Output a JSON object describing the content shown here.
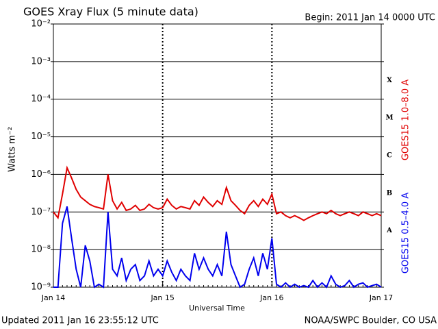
{
  "chart_data": {
    "type": "line",
    "title": "GOES Xray Flux (5 minute data)",
    "subtitle": "Begin:  2011 Jan 14 0000 UTC",
    "xlabel": "Universal Time",
    "ylabel": "Watts m⁻²",
    "footer_left": "Updated 2011 Jan 16 23:55:12 UTC",
    "footer_right": "NOAA/SWPC Boulder, CO USA",
    "log_y": true,
    "grid": true,
    "ylim": [
      1e-09,
      0.01
    ],
    "yticks": [
      {
        "value": 1e-09,
        "label": "10⁻⁹"
      },
      {
        "value": 1e-08,
        "label": "10⁻⁸"
      },
      {
        "value": 1e-07,
        "label": "10⁻⁷"
      },
      {
        "value": 1e-06,
        "label": "10⁻⁶"
      },
      {
        "value": 1e-05,
        "label": "10⁻⁵"
      },
      {
        "value": 0.0001,
        "label": "10⁻⁴"
      },
      {
        "value": 0.001,
        "label": "10⁻³"
      },
      {
        "value": 0.01,
        "label": "10⁻²"
      }
    ],
    "flare_classes": [
      {
        "label": "A",
        "lower": 1e-08
      },
      {
        "label": "B",
        "lower": 1e-07
      },
      {
        "label": "C",
        "lower": 1e-06
      },
      {
        "label": "M",
        "lower": 1e-05
      },
      {
        "label": "X",
        "lower": 0.0001
      }
    ],
    "categories": [
      "Jan 14",
      null,
      null,
      null,
      null,
      null,
      null,
      null,
      null,
      null,
      null,
      null,
      null,
      null,
      null,
      null,
      null,
      null,
      null,
      null,
      null,
      null,
      null,
      null,
      "Jan 15",
      null,
      null,
      null,
      null,
      null,
      null,
      null,
      null,
      null,
      null,
      null,
      null,
      null,
      null,
      null,
      null,
      null,
      null,
      null,
      null,
      null,
      null,
      null,
      "Jan 16",
      null,
      null,
      null,
      null,
      null,
      null,
      null,
      null,
      null,
      null,
      null,
      null,
      null,
      null,
      null,
      null,
      null,
      null,
      null,
      null,
      null,
      null,
      null,
      "Jan 17"
    ],
    "series": [
      {
        "name": "GOES15 1.0–8.0 A",
        "color": "#e00000",
        "values": [
          1e-07,
          7e-08,
          3e-07,
          1.5e-06,
          8e-07,
          4e-07,
          2.5e-07,
          2e-07,
          1.6e-07,
          1.4e-07,
          1.3e-07,
          1.2e-07,
          1e-06,
          2e-07,
          1.2e-07,
          1.8e-07,
          1.1e-07,
          1.2e-07,
          1.5e-07,
          1.1e-07,
          1.2e-07,
          1.6e-07,
          1.3e-07,
          1.2e-07,
          1.3e-07,
          2.2e-07,
          1.5e-07,
          1.2e-07,
          1.4e-07,
          1.3e-07,
          1.2e-07,
          2e-07,
          1.5e-07,
          2.5e-07,
          1.8e-07,
          1.4e-07,
          2e-07,
          1.6e-07,
          4.5e-07,
          2e-07,
          1.5e-07,
          1.1e-07,
          9e-08,
          1.5e-07,
          2e-07,
          1.4e-07,
          2.2e-07,
          1.6e-07,
          3e-07,
          9e-08,
          1e-07,
          8e-08,
          7e-08,
          8e-08,
          7e-08,
          6e-08,
          7e-08,
          8e-08,
          9e-08,
          1e-07,
          9e-08,
          1.1e-07,
          9e-08,
          8e-08,
          9e-08,
          1e-07,
          9e-08,
          8e-08,
          1e-07,
          9e-08,
          8e-08,
          9e-08,
          8e-08
        ]
      },
      {
        "name": "GOES15 0.5–4.0 A",
        "color": "#0000ee",
        "values": [
          1e-09,
          1e-09,
          5e-08,
          1.4e-07,
          2e-08,
          3e-09,
          1e-09,
          1.3e-08,
          5e-09,
          1e-09,
          1.2e-09,
          1e-09,
          1e-07,
          3e-09,
          2e-09,
          6e-09,
          1.5e-09,
          3e-09,
          4e-09,
          1.5e-09,
          2e-09,
          5e-09,
          2e-09,
          3e-09,
          2e-09,
          5e-09,
          2.5e-09,
          1.5e-09,
          3e-09,
          2e-09,
          1.5e-09,
          8e-09,
          3e-09,
          6e-09,
          3e-09,
          2e-09,
          4e-09,
          2e-09,
          3e-08,
          4e-09,
          2e-09,
          1e-09,
          1.2e-09,
          3e-09,
          6e-09,
          2e-09,
          8e-09,
          3e-09,
          2e-08,
          1.2e-09,
          1e-09,
          1.3e-09,
          1e-09,
          1.2e-09,
          1e-09,
          1.1e-09,
          1e-09,
          1.5e-09,
          1e-09,
          1.3e-09,
          1e-09,
          2e-09,
          1.2e-09,
          1e-09,
          1.1e-09,
          1.5e-09,
          1e-09,
          1.2e-09,
          1.3e-09,
          1e-09,
          1.1e-09,
          1.2e-09,
          1e-09
        ]
      }
    ]
  }
}
